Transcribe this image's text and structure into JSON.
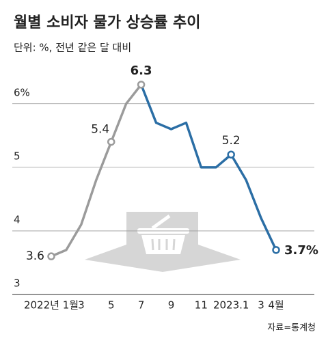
{
  "chart_data": {
    "type": "line",
    "title": "월별 소비자 물가 상승률 추이",
    "subtitle": "단위: %, 전년 같은 달 대비",
    "source": "자료=통계청",
    "categories": [
      "2022년 1월",
      null,
      "3",
      null,
      "5",
      null,
      "7",
      null,
      "9",
      null,
      "11",
      null,
      "2023.1",
      null,
      "3",
      "4월"
    ],
    "series": [
      {
        "color": "#9b9b9b",
        "values": [
          3.6,
          3.7,
          4.1,
          4.8,
          5.4,
          6.0,
          6.3,
          null,
          null,
          null,
          null,
          null,
          null,
          null,
          null,
          null
        ],
        "value_labels": [
          "3.6",
          null,
          null,
          null,
          "5.4",
          null,
          "6.3",
          null,
          null,
          null,
          null,
          null,
          null,
          null,
          null,
          null
        ]
      },
      {
        "color": "#2b6ea5",
        "values": [
          null,
          null,
          null,
          null,
          null,
          null,
          6.3,
          5.7,
          5.6,
          5.7,
          5.0,
          5.0,
          5.2,
          4.8,
          4.2,
          3.7
        ],
        "value_labels": [
          null,
          null,
          null,
          null,
          null,
          null,
          null,
          null,
          null,
          null,
          null,
          null,
          "5.2",
          null,
          null,
          "3.7%"
        ]
      }
    ],
    "ylim": [
      3,
      6.9
    ],
    "yticks": [
      3,
      4,
      5,
      {
        "value": 6,
        "label": "6%"
      }
    ],
    "grid": true
  }
}
